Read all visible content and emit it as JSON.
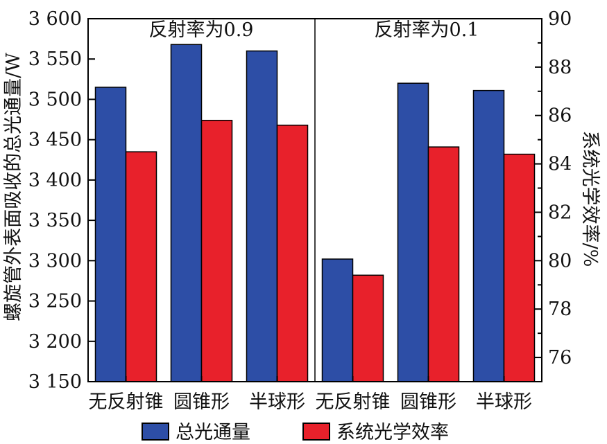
{
  "chart_data": {
    "type": "bar",
    "panels": [
      "反射率为0.9",
      "反射率为0.1"
    ],
    "categories": [
      "无反射锥",
      "圆锥形",
      "半球形",
      "无反射锥",
      "圆锥形",
      "半球形"
    ],
    "series": [
      {
        "name": "总光通量",
        "axis": "left",
        "color": "#2d4ea6",
        "values": [
          3515,
          3568,
          3560,
          3302,
          3520,
          3511
        ]
      },
      {
        "name": "系统光学效率",
        "axis": "right",
        "color": "#e8212b",
        "values": [
          84.5,
          85.8,
          85.6,
          79.4,
          84.7,
          84.4
        ]
      }
    ],
    "ylabel_left": "螺旋管外表面吸收的总光通量/W",
    "ylabel_right": "系统光学效率/%",
    "ylim_left": [
      3150,
      3600
    ],
    "ylim_right": [
      75,
      90
    ],
    "yticks_left": [
      "3 150",
      "3 200",
      "3 250",
      "3 300",
      "3 350",
      "3 400",
      "3 450",
      "3 500",
      "3 550",
      "3 600"
    ],
    "yticks_right": [
      "76",
      "78",
      "80",
      "82",
      "84",
      "86",
      "88",
      "90"
    ],
    "legend_position": "bottom",
    "grid": false
  }
}
